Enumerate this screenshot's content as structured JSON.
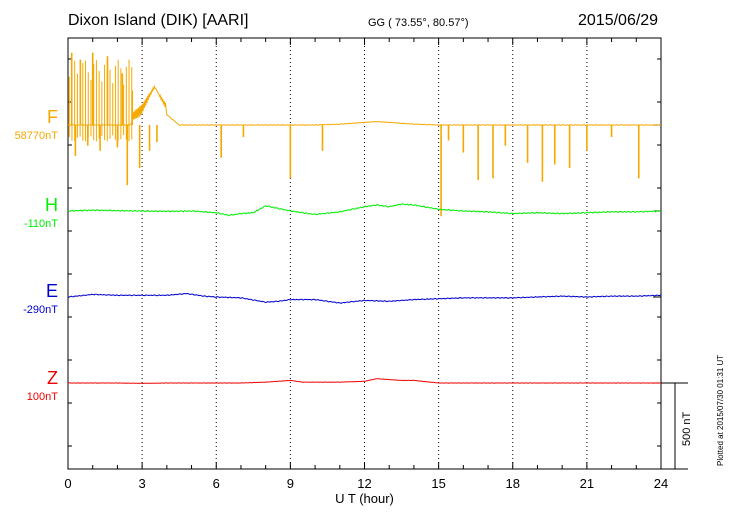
{
  "header": {
    "station": "Dixon Island (DIK)  [AARI]",
    "coords": "GG ( 73.55°,  80.57°)",
    "date": "2015/06/29"
  },
  "side_note": "Plotted at 2015/07/30 01:31  UT",
  "scale_label": "500 nT",
  "chart_data": {
    "type": "line",
    "xlabel": "U T (hour)",
    "xlim": [
      0,
      24
    ],
    "xticks": [
      "0",
      "3",
      "6",
      "9",
      "12",
      "15",
      "18",
      "21",
      "24"
    ],
    "grid": "vertical dotted at every 3 h",
    "scale_bar_nT": 500,
    "series": [
      {
        "name": "F",
        "baseline_label": "58770nT",
        "color": "#f5a800",
        "x": [
          0,
          0.5,
          1,
          1.5,
          2,
          2.5,
          3,
          3.5,
          4,
          4.5,
          5,
          6,
          7,
          8,
          9,
          10,
          11,
          12,
          12.5,
          13,
          14,
          15,
          16,
          17,
          18,
          19,
          20,
          21,
          22,
          23,
          24
        ],
        "values": [
          0,
          0,
          0,
          0,
          0,
          0,
          60,
          180,
          60,
          0,
          0,
          0,
          0,
          0,
          0,
          0,
          5,
          15,
          20,
          15,
          5,
          0,
          0,
          0,
          0,
          0,
          0,
          0,
          0,
          0,
          0
        ],
        "spikes": [
          {
            "t": 0.15,
            "v": 420
          },
          {
            "t": 0.3,
            "v": -180
          },
          {
            "t": 0.5,
            "v": 380
          },
          {
            "t": 0.8,
            "v": -120
          },
          {
            "t": 1.0,
            "v": 420
          },
          {
            "t": 1.3,
            "v": -150
          },
          {
            "t": 1.6,
            "v": 400
          },
          {
            "t": 2.0,
            "v": -130
          },
          {
            "t": 2.2,
            "v": 300
          },
          {
            "t": 2.4,
            "v": -350
          },
          {
            "t": 2.6,
            "v": 200
          },
          {
            "t": 2.9,
            "v": -250
          },
          {
            "t": 3.3,
            "v": -150
          },
          {
            "t": 3.6,
            "v": -100
          },
          {
            "t": 6.2,
            "v": -190
          },
          {
            "t": 7.1,
            "v": -70
          },
          {
            "t": 9.0,
            "v": -310
          },
          {
            "t": 10.3,
            "v": -150
          },
          {
            "t": 15.1,
            "v": -530
          },
          {
            "t": 15.4,
            "v": -90
          },
          {
            "t": 16.0,
            "v": -160
          },
          {
            "t": 16.6,
            "v": -320
          },
          {
            "t": 17.2,
            "v": -310
          },
          {
            "t": 17.7,
            "v": -120
          },
          {
            "t": 18.6,
            "v": -220
          },
          {
            "t": 19.2,
            "v": -330
          },
          {
            "t": 19.7,
            "v": -230
          },
          {
            "t": 20.3,
            "v": -250
          },
          {
            "t": 21.0,
            "v": -150
          },
          {
            "t": 22.0,
            "v": -70
          },
          {
            "t": 23.1,
            "v": -310
          }
        ]
      },
      {
        "name": "H",
        "baseline_label": "-110nT",
        "color": "#00ee00",
        "x": [
          0,
          1,
          2,
          3,
          4,
          5,
          6,
          6.5,
          7,
          7.5,
          8,
          8.5,
          9,
          10,
          11,
          12,
          12.5,
          13,
          13.5,
          14,
          15,
          16,
          17,
          18,
          19,
          20,
          21,
          22,
          23,
          24
        ],
        "values": [
          0,
          5,
          2,
          0,
          -2,
          0,
          -10,
          -25,
          -15,
          -10,
          30,
          15,
          0,
          -20,
          -5,
          25,
          35,
          25,
          40,
          35,
          10,
          0,
          -5,
          -15,
          -10,
          -15,
          -10,
          -5,
          -5,
          0
        ]
      },
      {
        "name": "E",
        "baseline_label": "-290nT",
        "color": "#0000cc",
        "x": [
          0,
          1,
          2,
          3,
          4,
          4.8,
          5.5,
          6,
          7,
          8,
          8.5,
          9,
          10,
          11,
          12,
          13,
          14,
          15,
          16,
          17,
          18,
          19,
          20,
          21,
          22,
          23,
          24
        ],
        "values": [
          0,
          15,
          10,
          10,
          10,
          20,
          5,
          0,
          -5,
          -30,
          -25,
          -15,
          -15,
          -35,
          -20,
          -25,
          -15,
          -10,
          -5,
          -5,
          -5,
          0,
          5,
          0,
          5,
          5,
          10
        ]
      },
      {
        "name": "Z",
        "baseline_label": "100nT",
        "color": "#ee0000",
        "x": [
          0,
          1,
          2,
          3,
          4,
          5,
          6,
          7,
          8,
          8.5,
          9,
          9.5,
          10,
          11,
          12,
          12.5,
          13,
          13.5,
          14,
          15,
          16,
          17,
          18,
          19,
          20,
          21,
          22,
          23,
          24
        ],
        "values": [
          0,
          0,
          0,
          -2,
          0,
          0,
          0,
          0,
          5,
          10,
          15,
          5,
          5,
          5,
          10,
          25,
          20,
          15,
          15,
          0,
          0,
          0,
          0,
          0,
          0,
          0,
          0,
          0,
          0
        ]
      }
    ]
  }
}
